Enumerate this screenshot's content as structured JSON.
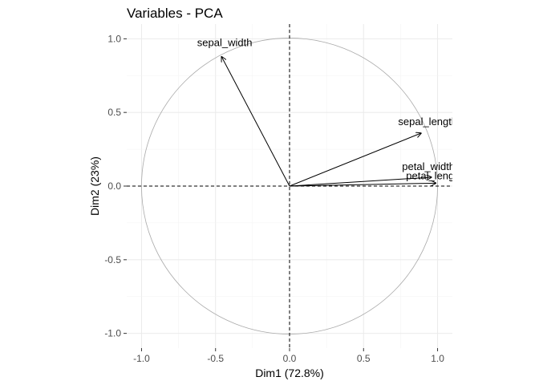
{
  "chart_data": {
    "type": "scatter",
    "title": "Variables - PCA",
    "xlabel": "Dim1 (72.8%)",
    "ylabel": "Dim2 (23%)",
    "xlim": [
      -1.1,
      1.1
    ],
    "ylim": [
      -1.1,
      1.1
    ],
    "xticks": [
      -1.0,
      -0.5,
      0.0,
      0.5,
      1.0
    ],
    "xtick_labels": [
      "-1.0",
      "-0.5",
      "0.0",
      "0.5",
      "1.0"
    ],
    "yticks": [
      -1.0,
      -0.5,
      0.0,
      0.5,
      1.0
    ],
    "ytick_labels": [
      "-1.0",
      "-0.5",
      "0.0",
      "0.5",
      "1.0"
    ],
    "grid": true,
    "reference_lines": {
      "x": 0,
      "y": 0,
      "style": "dashed"
    },
    "correlation_circle": {
      "radius": 1,
      "color": "#aaaaaa"
    },
    "variables": [
      {
        "name": "sepal_length",
        "x": 0.89,
        "y": 0.36
      },
      {
        "name": "sepal_width",
        "x": -0.46,
        "y": 0.88
      },
      {
        "name": "petal_length",
        "x": 0.99,
        "y": 0.02
      },
      {
        "name": "petal_width",
        "x": 0.96,
        "y": 0.06
      }
    ],
    "colors": {
      "arrow": "#000000",
      "label": "#000000",
      "circle": "#aaaaaa",
      "grid": "#ebebeb"
    }
  }
}
